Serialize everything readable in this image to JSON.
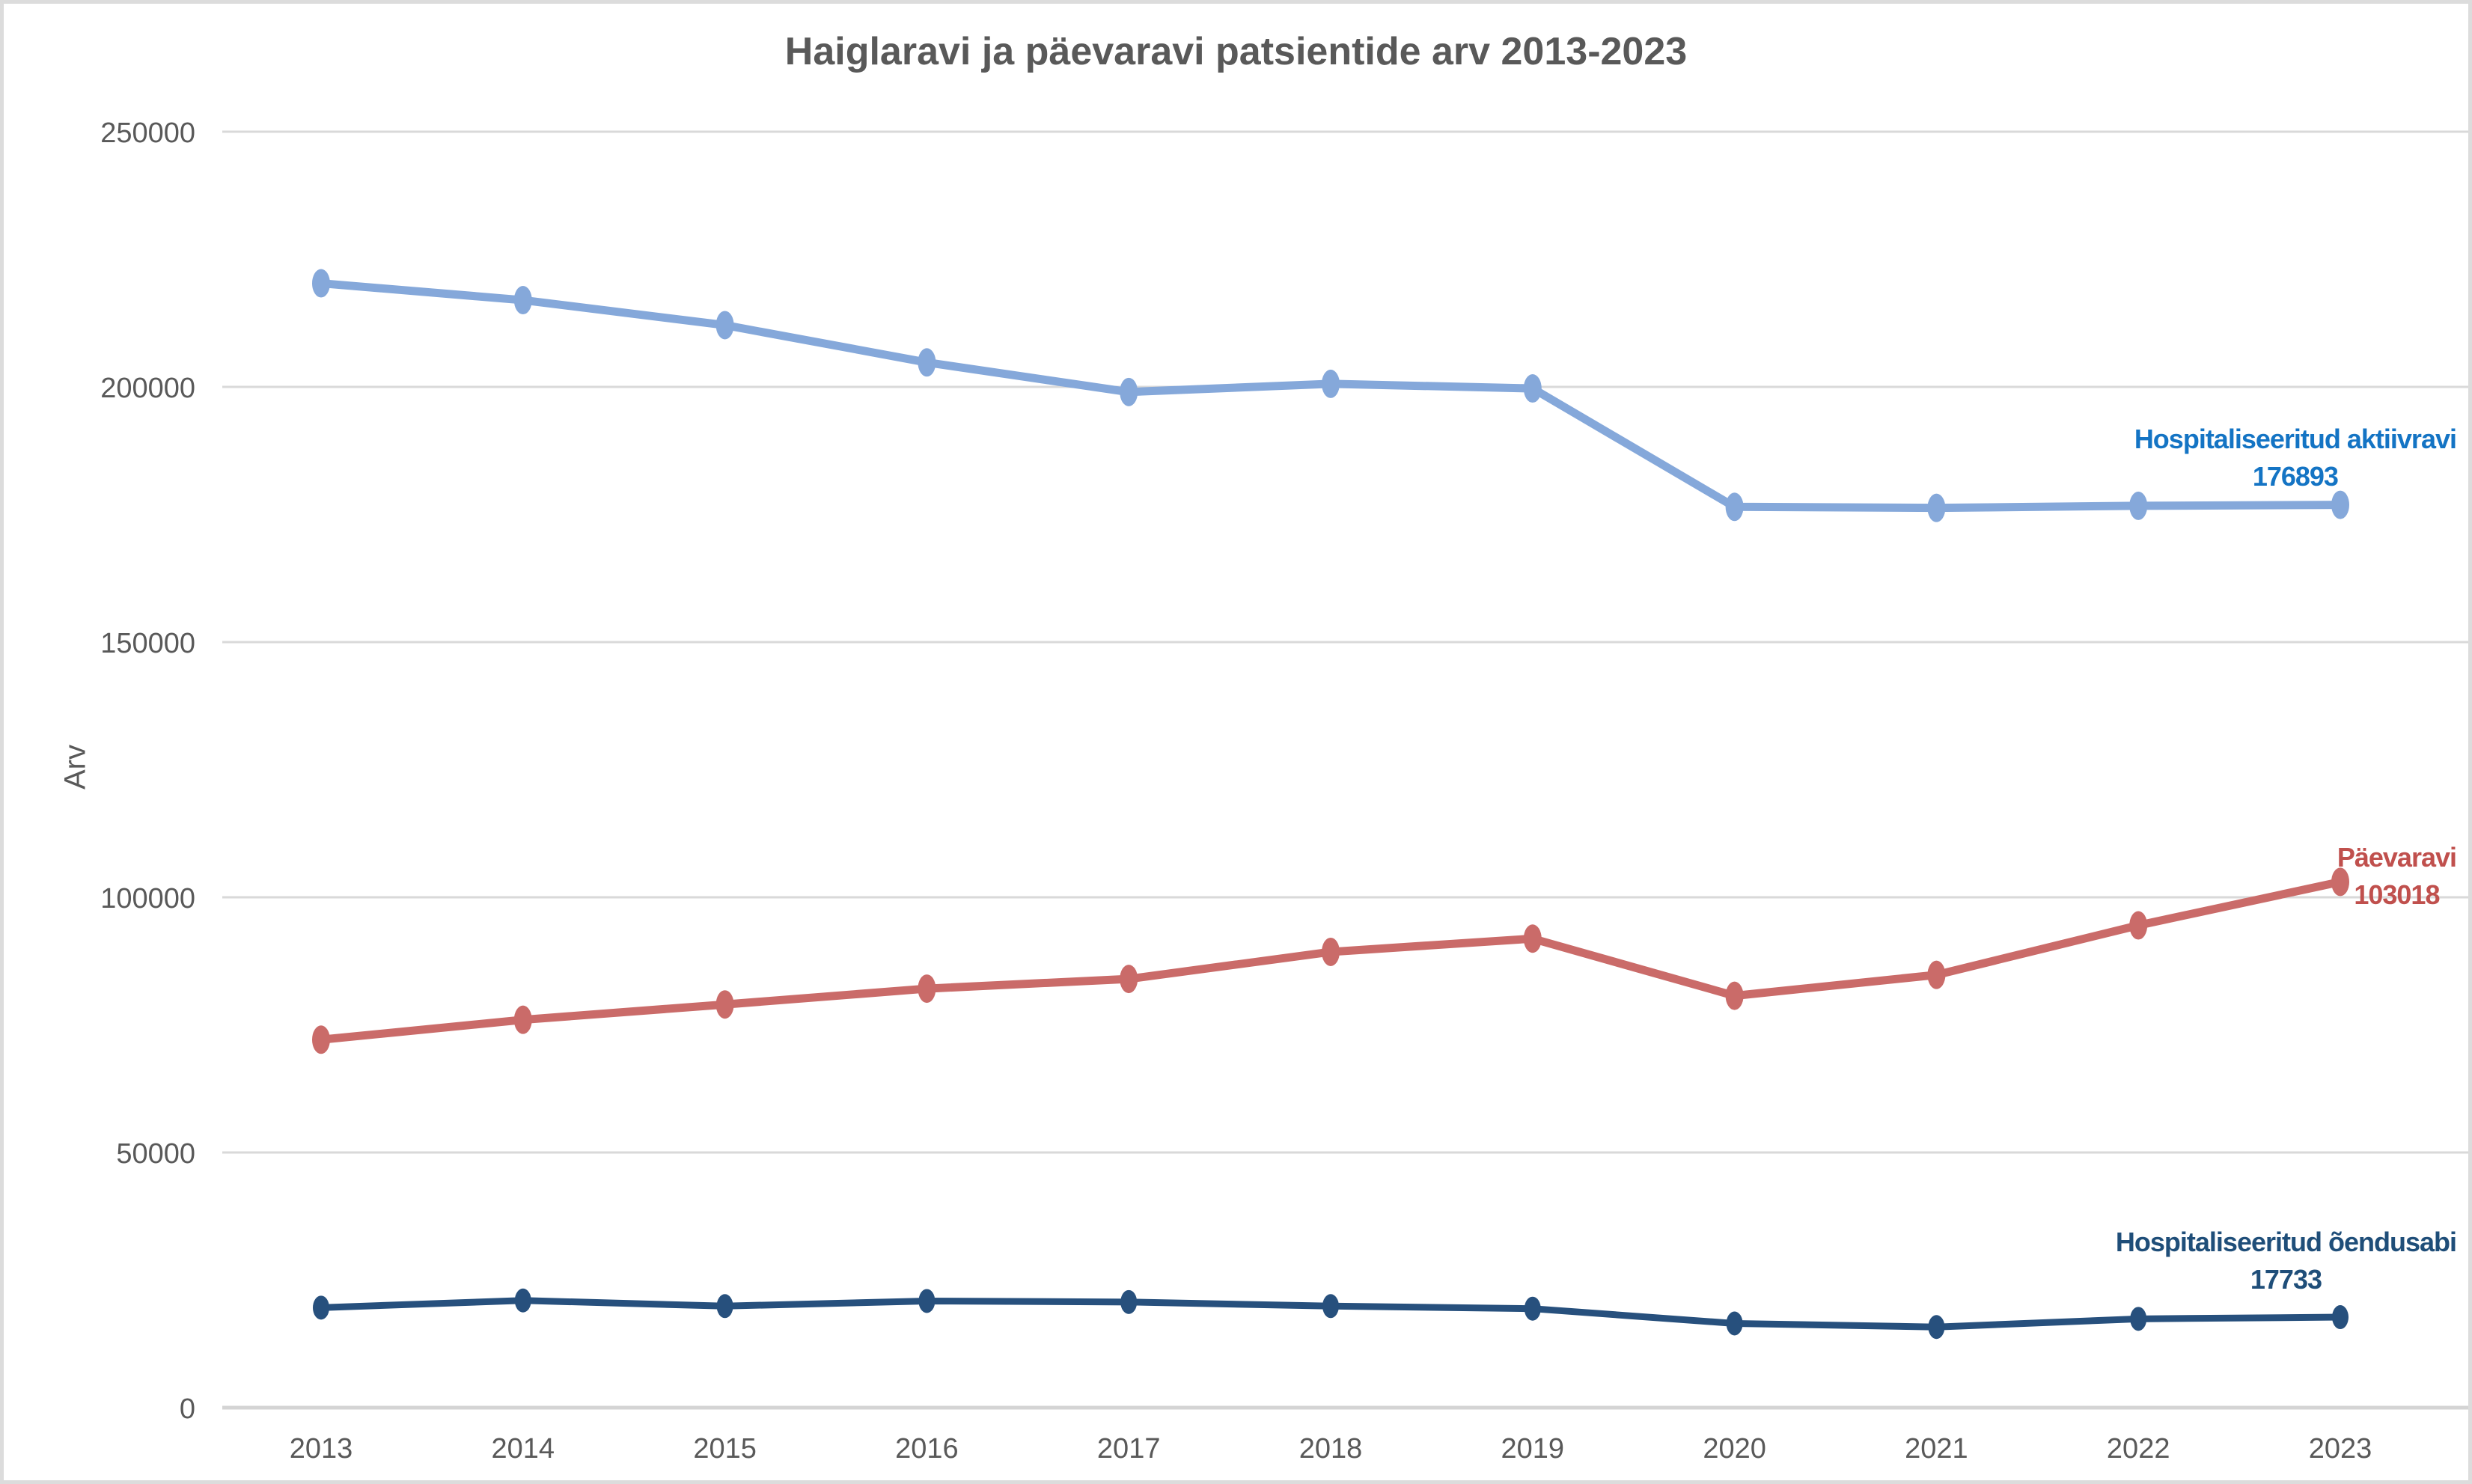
{
  "frame": {
    "background_color": "#FFFFFF",
    "border_color": "#DCDCDC"
  },
  "chart_data": {
    "type": "line",
    "title": "Haiglaravi ja päevaravi patsientide arv 2013-2023",
    "xlabel": "",
    "ylabel": "Arv",
    "x": [
      "2013",
      "2014",
      "2015",
      "2016",
      "2017",
      "2018",
      "2019",
      "2020",
      "2021",
      "2022",
      "2023"
    ],
    "ylim": [
      0,
      250000
    ],
    "yticks": [
      0,
      50000,
      100000,
      150000,
      200000,
      250000
    ],
    "grid": true,
    "legend_position": "line-end-labels",
    "text_color": "#595959",
    "grid_color": "#D9D9D9",
    "axis_line_color": "#D4D4D4",
    "series": [
      {
        "id": "aktiivravi",
        "name": "Hospitaliseeritud aktiivravi",
        "end_value_label": "176893",
        "color": "#85A8DA",
        "label_color": "#1474C4",
        "values": [
          220300,
          217000,
          212100,
          204800,
          199000,
          200600,
          199700,
          176500,
          176300,
          176700,
          176893
        ]
      },
      {
        "id": "paevaravi",
        "name": "Päevaravi",
        "end_value_label": "103018",
        "color": "#CA6B69",
        "label_color": "#C0504D",
        "values": [
          72100,
          76000,
          79000,
          82100,
          84000,
          89300,
          91900,
          80700,
          84800,
          94500,
          103018
        ]
      },
      {
        "id": "oendusabi",
        "name": "Hospitaliseeritud õendusabi",
        "end_value_label": "17733",
        "color": "#27507D",
        "label_color": "#1F4E79",
        "values": [
          19600,
          21000,
          19900,
          20900,
          20700,
          19900,
          19400,
          16500,
          15800,
          17400,
          17733
        ]
      }
    ]
  }
}
